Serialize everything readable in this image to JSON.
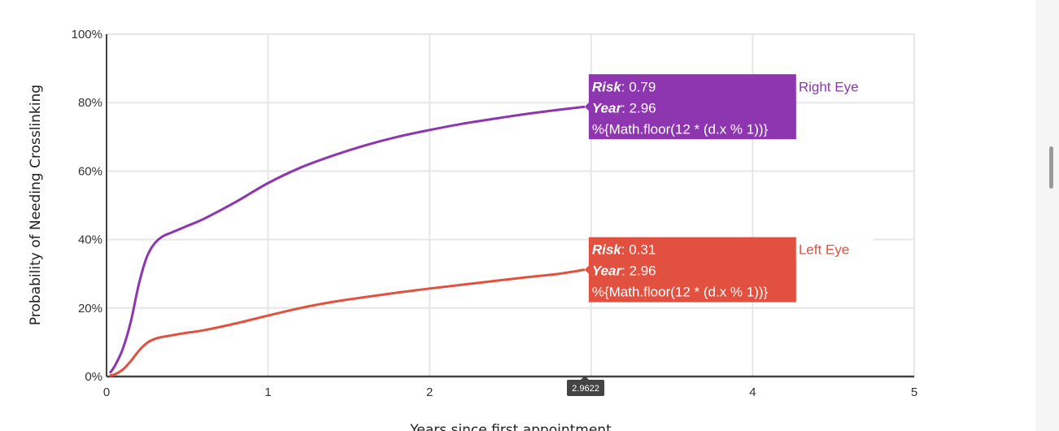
{
  "chart_data": {
    "type": "line",
    "xlabel": "Years since first appointment",
    "ylabel": "Probability of Needing Crosslinking",
    "xlim": [
      0,
      5
    ],
    "ylim": [
      0,
      1
    ],
    "x_ticks": [
      "0",
      "1",
      "2",
      "3",
      "4",
      "5"
    ],
    "y_ticks": [
      "0%",
      "20%",
      "40%",
      "60%",
      "80%",
      "100%"
    ],
    "grid": true,
    "series": [
      {
        "name": "Right Eye",
        "color": "#8e35b0",
        "x": [
          0.02,
          0.05,
          0.1,
          0.15,
          0.2,
          0.25,
          0.3,
          0.35,
          0.4,
          0.5,
          0.6,
          0.8,
          1.0,
          1.2,
          1.4,
          1.6,
          1.8,
          2.0,
          2.2,
          2.4,
          2.6,
          2.8,
          2.96
        ],
        "y": [
          0.01,
          0.03,
          0.08,
          0.16,
          0.27,
          0.35,
          0.39,
          0.41,
          0.42,
          0.44,
          0.46,
          0.51,
          0.565,
          0.61,
          0.645,
          0.675,
          0.7,
          0.72,
          0.738,
          0.753,
          0.767,
          0.779,
          0.788
        ]
      },
      {
        "name": "Left Eye",
        "color": "#e2513f",
        "x": [
          0.02,
          0.05,
          0.1,
          0.15,
          0.2,
          0.25,
          0.3,
          0.35,
          0.4,
          0.5,
          0.6,
          0.8,
          1.0,
          1.2,
          1.4,
          1.6,
          1.8,
          2.0,
          2.2,
          2.4,
          2.6,
          2.8,
          2.96
        ],
        "y": [
          0.003,
          0.006,
          0.02,
          0.045,
          0.075,
          0.098,
          0.11,
          0.116,
          0.12,
          0.128,
          0.135,
          0.155,
          0.178,
          0.2,
          0.218,
          0.232,
          0.245,
          0.257,
          0.268,
          0.279,
          0.29,
          0.3,
          0.312
        ]
      }
    ],
    "hover": {
      "x_label": "2.9622",
      "tooltips": [
        {
          "series": "Right Eye",
          "risk_label": "Risk",
          "risk_value": ": 0.79",
          "year_label": "Year",
          "year_value": ": 2.96",
          "extra": "%{Math.floor(12 * (d.x % 1))}"
        },
        {
          "series": "Left Eye",
          "risk_label": "Risk",
          "risk_value": ": 0.31",
          "year_label": "Year",
          "year_value": ": 2.96",
          "extra": "%{Math.floor(12 * (d.x % 1))}"
        }
      ]
    }
  }
}
